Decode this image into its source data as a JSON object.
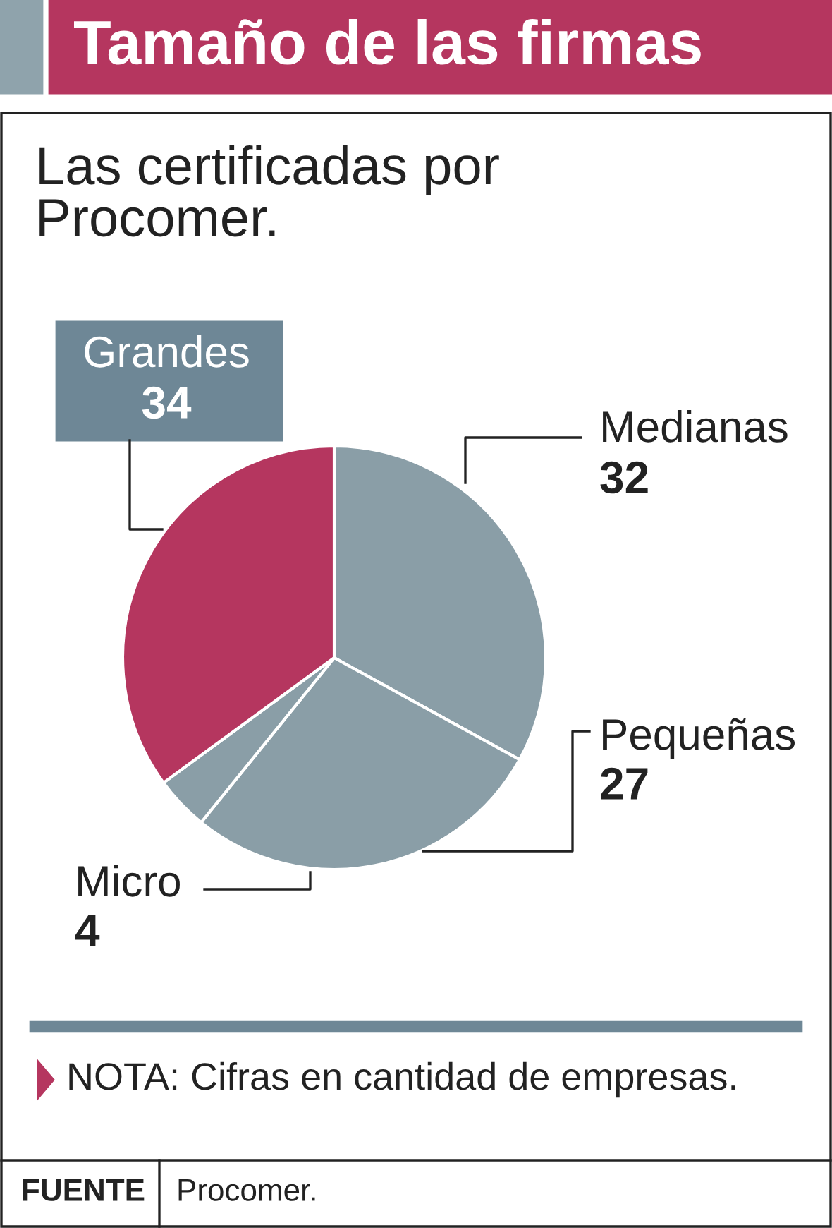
{
  "chart_data": {
    "type": "pie",
    "title": "Tamaño de las firmas",
    "subtitle": "Las certificadas por\nProcomer.",
    "categories": [
      "Medianas",
      "Pequeñas",
      "Micro",
      "Grandes"
    ],
    "values": [
      32,
      27,
      4,
      34
    ],
    "colors": [
      "#8a9ea7",
      "#8a9ea7",
      "#8a9ea7",
      "#b5365f"
    ],
    "data_labels": true,
    "annotations": [
      "NOTA: Cifras en cantidad de empresas.",
      "FUENTE",
      "Procomer."
    ]
  }
}
